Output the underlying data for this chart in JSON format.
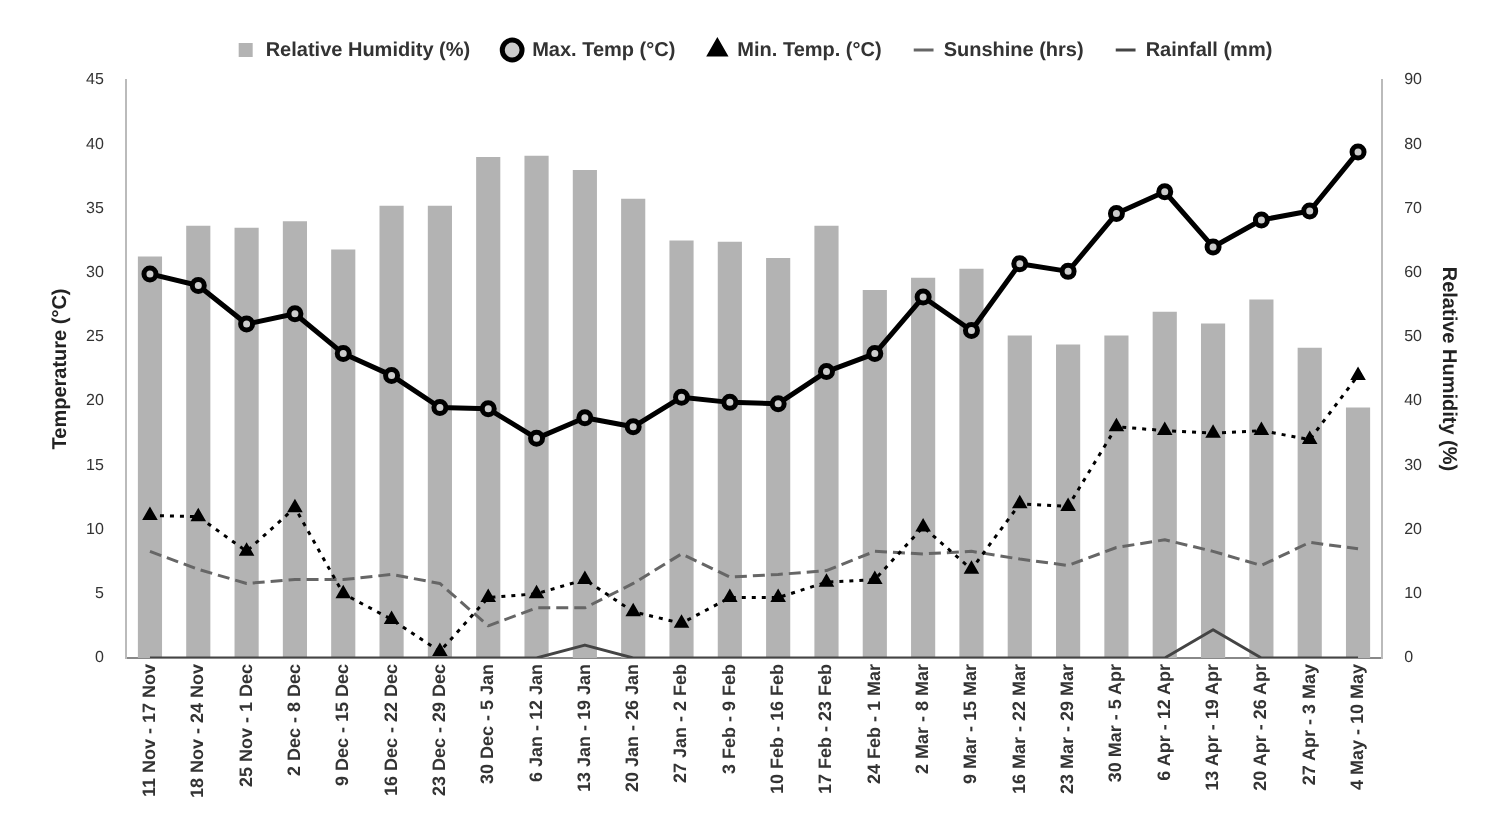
{
  "chart_data": {
    "type": "bar",
    "ylabel": "Temperature (°C)",
    "y2label": "Relative Humidity (%)",
    "categories": [
      "11 Nov - 17 Nov",
      "18 Nov - 24 Nov",
      "25 Nov - 1 Dec",
      "2 Dec - 8 Dec",
      "9 Dec - 15 Dec",
      "16 Dec - 22 Dec",
      "23 Dec - 29 Dec",
      "30 Dec - 5 Jan",
      "6 Jan - 12 Jan",
      "13 Jan - 19 Jan",
      "20 Jan - 26 Jan",
      "27 Jan - 2 Feb",
      "3 Feb - 9 Feb",
      "10 Feb - 16 Feb",
      "17 Feb - 23 Feb",
      "24 Feb - 1 Mar",
      "2 Mar - 8 Mar",
      "9 Mar - 15 Mar",
      "16 Mar - 22 Mar",
      "23 Mar - 29 Mar",
      "30 Mar - 5 Apr",
      "6 Apr - 12 Apr",
      "13 Apr - 19 Apr",
      "20 Apr - 26 Apr",
      "27 Apr - 3 May",
      "4 May - 10 May"
    ],
    "series": [
      {
        "name": "Relative Humidity (%)",
        "axis": "y2",
        "color": "#b3b3b3",
        "values": [
          62.5,
          67.3,
          67,
          68,
          63.6,
          70.4,
          70.4,
          78,
          78.2,
          76,
          71.5,
          65,
          64.8,
          62.3,
          67.3,
          57.3,
          59.2,
          60.6,
          50.2,
          48.8,
          50.2,
          53.9,
          52.1,
          55.8,
          48.3,
          39
        ]
      },
      {
        "name": "Max. Temp (°C)",
        "type": "line",
        "axis": "y",
        "color": "#000000",
        "marker": "circle",
        "line_style": "solid",
        "values": [
          29.9,
          29,
          26,
          26.8,
          23.7,
          22,
          19.5,
          19.4,
          17.1,
          18.7,
          18,
          20.3,
          19.9,
          19.8,
          22.3,
          23.7,
          28.1,
          25.5,
          30.7,
          30.1,
          34.6,
          36.3,
          32,
          34.1,
          34.8,
          39.4
        ]
      },
      {
        "name": "Min. Temp. (°C)",
        "type": "line",
        "axis": "y",
        "color": "#000000",
        "marker": "triangle",
        "line_style": "dotted",
        "values": [
          11.1,
          11,
          8.3,
          11.7,
          5,
          3,
          0.5,
          4.7,
          5,
          6.1,
          3.6,
          2.7,
          4.7,
          4.7,
          5.9,
          6.1,
          10.2,
          6.9,
          12,
          11.8,
          18,
          17.7,
          17.5,
          17.7,
          17,
          22
        ]
      },
      {
        "name": "Sunshine (hrs)",
        "type": "line",
        "axis": "y",
        "color": "#666666",
        "marker": "none",
        "line_style": "dashed",
        "values": [
          8.3,
          6.9,
          5.8,
          6.1,
          6.1,
          6.5,
          5.8,
          2.5,
          3.9,
          3.9,
          5.8,
          8.1,
          6.3,
          6.5,
          6.8,
          8.3,
          8.1,
          8.3,
          7.7,
          7.2,
          8.6,
          9.2,
          8.3,
          7.2,
          9,
          8.5
        ]
      },
      {
        "name": "Rainfall (mm)",
        "type": "line",
        "axis": "y",
        "color": "#444444",
        "marker": "none",
        "line_style": "solid",
        "values": [
          0,
          0,
          0,
          0,
          0,
          0,
          0,
          0,
          0,
          1,
          0,
          0,
          0,
          0,
          0,
          0,
          0,
          0,
          0,
          0,
          0,
          0,
          2.2,
          0,
          0,
          0
        ]
      }
    ],
    "ylim": [
      0,
      45
    ],
    "yticks": [
      0,
      5,
      10,
      15,
      20,
      25,
      30,
      35,
      40,
      45
    ],
    "y2lim": [
      0,
      90
    ],
    "y2ticks": [
      0,
      10,
      20,
      30,
      40,
      50,
      60,
      70,
      80,
      90
    ],
    "grid": false,
    "legend": "top"
  }
}
